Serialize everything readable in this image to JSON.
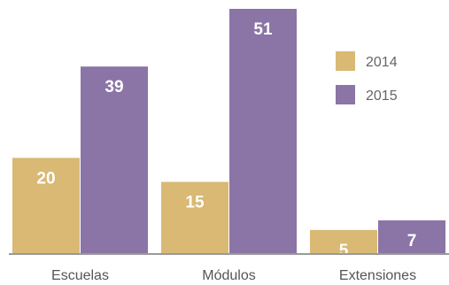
{
  "chart_data": {
    "type": "bar",
    "categories": [
      "Escuelas",
      "Módulos",
      "Extensiones"
    ],
    "series": [
      {
        "name": "2014",
        "values": [
          20,
          15,
          5
        ],
        "color": "#D9B973"
      },
      {
        "name": "2015",
        "values": [
          39,
          51,
          7
        ],
        "color": "#8B74A6"
      }
    ],
    "title": "",
    "xlabel": "",
    "ylabel": "",
    "ylim": [
      0,
      54
    ],
    "grid": false,
    "legend": "top-right",
    "axis_color": "#999999"
  }
}
